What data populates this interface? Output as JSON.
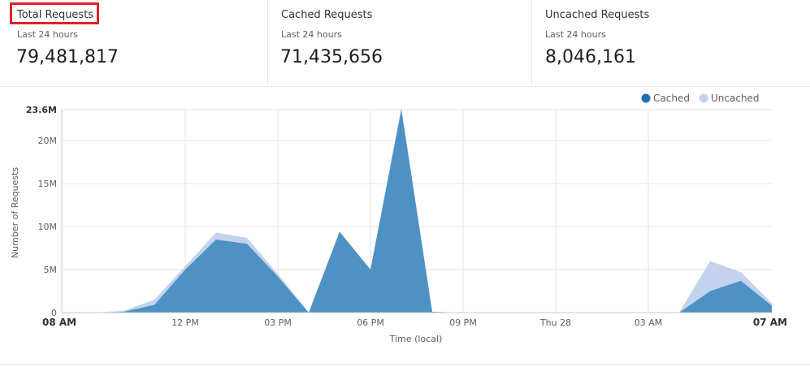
{
  "cards": [
    {
      "title": "Total Requests",
      "subtitle": "Last 24 hours",
      "value": "79,481,817"
    },
    {
      "title": "Cached Requests",
      "subtitle": "Last 24 hours",
      "value": "71,435,656"
    },
    {
      "title": "Uncached Requests",
      "subtitle": "Last 24 hours",
      "value": "8,046,161"
    }
  ],
  "colors": {
    "cached": "#4e92c3",
    "cached_legend": "#1f6fb0",
    "uncached": "#c3d3ee",
    "grid": "#e6e6e6",
    "highlight": "#e0212a"
  },
  "chart_data": {
    "type": "area",
    "stacked": true,
    "xlabel": "Time (local)",
    "ylabel": "Number of Requests",
    "ylim": [
      0,
      23.6
    ],
    "y_unit": "M",
    "yticks": [
      {
        "value": 0,
        "label": "0"
      },
      {
        "value": 5,
        "label": "5M"
      },
      {
        "value": 10,
        "label": "10M"
      },
      {
        "value": 15,
        "label": "15M"
      },
      {
        "value": 20,
        "label": "20M"
      },
      {
        "value": 23.6,
        "label": "23.6M"
      }
    ],
    "xlim_hours": [
      0,
      23
    ],
    "xticks": [
      {
        "hour": 0,
        "label": "08 AM"
      },
      {
        "hour": 4,
        "label": "12 PM"
      },
      {
        "hour": 7,
        "label": "03 PM"
      },
      {
        "hour": 10,
        "label": "06 PM"
      },
      {
        "hour": 13,
        "label": "09 PM"
      },
      {
        "hour": 16,
        "label": "Thu 28"
      },
      {
        "hour": 19,
        "label": "03 AM"
      },
      {
        "hour": 23,
        "label": "07 AM"
      }
    ],
    "x": [
      0,
      1,
      2,
      3,
      4,
      5,
      6,
      7,
      8,
      9,
      10,
      11,
      12,
      13,
      14,
      15,
      16,
      17,
      18,
      19,
      20,
      21,
      22,
      23
    ],
    "series": [
      {
        "name": "Cached",
        "values": [
          0,
          0,
          0.1,
          0.9,
          5.0,
          8.5,
          8.0,
          4.2,
          0,
          9.4,
          5.0,
          23.6,
          0.1,
          0,
          0,
          0,
          0,
          0,
          0,
          0,
          0,
          2.5,
          3.7,
          0.8
        ]
      },
      {
        "name": "Uncached",
        "values": [
          0,
          0,
          0.1,
          0.6,
          0.4,
          0.8,
          0.7,
          0.3,
          0,
          0,
          0,
          0.3,
          0,
          0,
          0,
          0,
          0,
          0,
          0,
          0,
          0,
          3.5,
          1.0,
          0.3
        ]
      }
    ],
    "legend": "top-right",
    "grid": true
  }
}
